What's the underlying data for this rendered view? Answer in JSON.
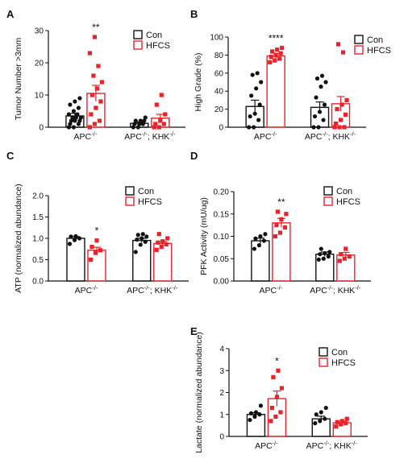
{
  "colors": {
    "con": "#111111",
    "hfcs": "#e8232a"
  },
  "chart_data": [
    {
      "panel": "A",
      "type": "bar",
      "ylabel": "Tumor Number >3mm",
      "ylim": [
        0,
        30
      ],
      "yticks": [
        0,
        10,
        20,
        30
      ],
      "groups": [
        {
          "main": "APC",
          "sup": "-/-"
        },
        {
          "main": "APC",
          "sup": "-/-",
          "main2": "; KHK",
          "sup2": "-/-"
        }
      ],
      "legend": [
        "Con",
        "HFCS"
      ],
      "series": [
        {
          "name": "Con",
          "values": [
            3.5,
            1.2
          ],
          "sem": [
            0.8,
            0.4
          ],
          "points": [
            [
              0,
              0,
              1,
              1,
              2,
              2,
              2,
              3,
              3,
              3,
              4,
              4,
              5,
              6,
              7,
              8,
              9
            ],
            [
              0,
              0,
              1,
              1,
              1,
              2,
              2,
              2,
              3
            ]
          ]
        },
        {
          "name": "HFCS",
          "values": [
            10.5,
            2.8
          ],
          "sem": [
            2.5,
            1.2
          ],
          "points": [
            [
              0,
              1,
              2,
              4,
              6,
              8,
              10,
              12,
              14,
              16,
              19,
              23,
              28
            ],
            [
              0,
              0,
              1,
              1,
              2,
              4,
              7,
              10
            ]
          ]
        }
      ],
      "significance": [
        "**",
        ""
      ]
    },
    {
      "panel": "B",
      "type": "bar",
      "ylabel": "High Grade (%)",
      "ylim": [
        0,
        100
      ],
      "yticks": [
        0,
        20,
        40,
        60,
        80,
        100
      ],
      "groups": [
        {
          "main": "APC",
          "sup": "-/-"
        },
        {
          "main": "APC",
          "sup": "-/-",
          "main2": "; KHK",
          "sup2": "-/-"
        }
      ],
      "legend": [
        "Con",
        "HFCS"
      ],
      "series": [
        {
          "name": "Con",
          "values": [
            23,
            22
          ],
          "sem": [
            7,
            6
          ],
          "points": [
            [
              0,
              0,
              8,
              12,
              15,
              25,
              35,
              43,
              50,
              58,
              60
            ],
            [
              0,
              0,
              8,
              12,
              17,
              25,
              33,
              45,
              50,
              54,
              57
            ]
          ]
        },
        {
          "name": "HFCS",
          "values": [
            79,
            26
          ],
          "sem": [
            3,
            8
          ],
          "points": [
            [
              72,
              74,
              76,
              78,
              80,
              82,
              84,
              86,
              88
            ],
            [
              0,
              0,
              0,
              4,
              8,
              14,
              20,
              25,
              30,
              92,
              83
            ]
          ]
        }
      ],
      "significance": [
        "****",
        ""
      ]
    },
    {
      "panel": "C",
      "type": "bar",
      "ylabel": "ATP (normalized abundance)",
      "ylim": [
        0,
        2.0
      ],
      "yticks": [
        "0.0",
        "0.5",
        "1.0",
        "1.5",
        "2.0"
      ],
      "groups": [
        {
          "main": "APC",
          "sup": "-/-"
        },
        {
          "main": "APC",
          "sup": "-/-",
          "main2": "; KHK",
          "sup2": "-/-"
        }
      ],
      "legend": [
        "Con",
        "HFCS"
      ],
      "series": [
        {
          "name": "Con",
          "values": [
            1.0,
            0.95
          ],
          "sem": [
            0.04,
            0.05
          ],
          "points": [
            [
              0.87,
              0.96,
              1.0,
              1.04,
              1.05
            ],
            [
              0.68,
              0.85,
              0.92,
              0.97,
              1.0,
              1.04,
              1.08,
              1.1
            ]
          ]
        },
        {
          "name": "HFCS",
          "values": [
            0.72,
            0.88
          ],
          "sem": [
            0.07,
            0.05
          ],
          "points": [
            [
              0.5,
              0.66,
              0.72,
              0.8,
              0.95
            ],
            [
              0.73,
              0.8,
              0.86,
              0.9,
              0.93,
              1.0,
              1.1
            ]
          ]
        }
      ],
      "significance": [
        "*",
        ""
      ]
    },
    {
      "panel": "D",
      "type": "bar",
      "ylabel": "PFK Activity (mU/ug)",
      "ylim": [
        0,
        0.2
      ],
      "yticks": [
        "0.00",
        "0.05",
        "0.10",
        "0.15",
        "0.20"
      ],
      "groups": [
        {
          "main": "APC",
          "sup": "-/-"
        },
        {
          "main": "APC",
          "sup": "-/-",
          "main2": "; KHK",
          "sup2": "-/-"
        }
      ],
      "legend": [
        "Con",
        "HFCS"
      ],
      "series": [
        {
          "name": "Con",
          "values": [
            0.09,
            0.06
          ],
          "sem": [
            0.006,
            0.005
          ],
          "points": [
            [
              0.072,
              0.08,
              0.09,
              0.095,
              0.1,
              0.105
            ],
            [
              0.048,
              0.05,
              0.055,
              0.06,
              0.062,
              0.065,
              0.072
            ]
          ]
        },
        {
          "name": "HFCS",
          "values": [
            0.13,
            0.058
          ],
          "sem": [
            0.01,
            0.006
          ],
          "points": [
            [
              0.1,
              0.108,
              0.12,
              0.125,
              0.138,
              0.15,
              0.155
            ],
            [
              0.045,
              0.05,
              0.055,
              0.06,
              0.072
            ]
          ]
        }
      ],
      "significance": [
        "**",
        ""
      ]
    },
    {
      "panel": "E",
      "type": "bar",
      "ylabel": "Lactate (normalized abundance)",
      "ylim": [
        0,
        4
      ],
      "yticks": [
        "0",
        "1",
        "2",
        "3",
        "4"
      ],
      "groups": [
        {
          "main": "APC",
          "sup": "-/-"
        },
        {
          "main": "APC",
          "sup": "-/-",
          "main2": "; KHK",
          "sup2": "-/-"
        }
      ],
      "legend": [
        "Con",
        "HFCS"
      ],
      "series": [
        {
          "name": "Con",
          "values": [
            1.0,
            0.8
          ],
          "sem": [
            0.08,
            0.12
          ],
          "points": [
            [
              0.75,
              0.9,
              1.0,
              1.05,
              1.1,
              1.4
            ],
            [
              0.6,
              0.7,
              0.8,
              1.0,
              1.1,
              1.3
            ]
          ]
        },
        {
          "name": "HFCS",
          "values": [
            1.72,
            0.62
          ],
          "sem": [
            0.35,
            0.07
          ],
          "points": [
            [
              0.7,
              0.9,
              1.1,
              1.3,
              1.8,
              2.2,
              2.7,
              3.0
            ],
            [
              0.45,
              0.55,
              0.6,
              0.65,
              0.7,
              0.8
            ]
          ]
        }
      ],
      "significance": [
        "*",
        ""
      ]
    }
  ]
}
